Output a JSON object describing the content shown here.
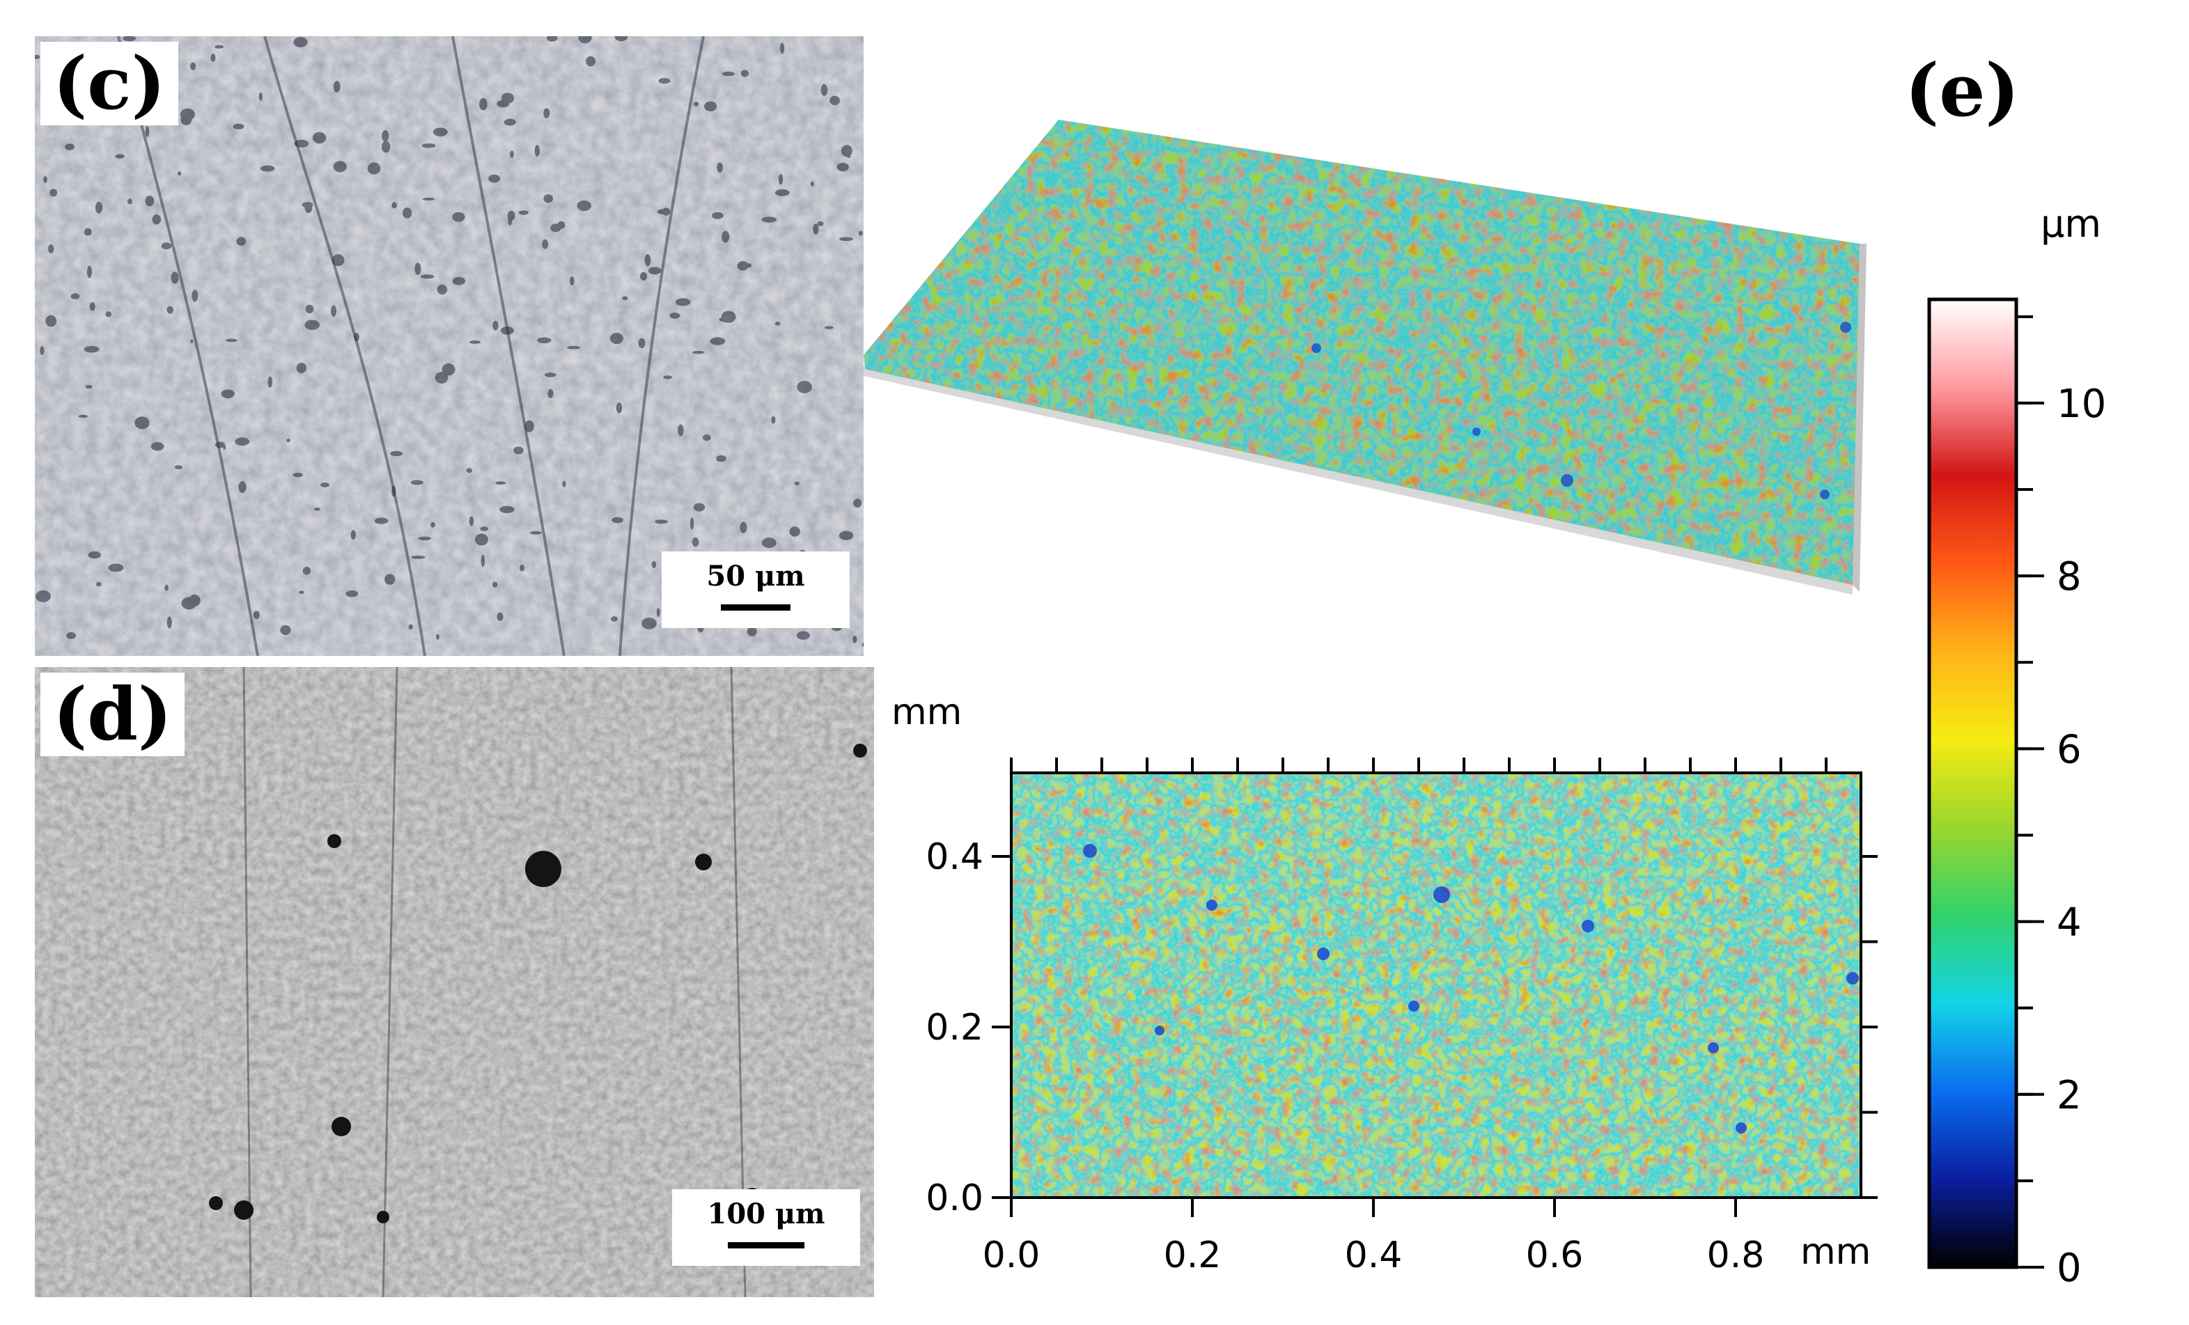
{
  "panel_c": {
    "label": "(c)",
    "scale_bar": "50 μm"
  },
  "panel_d": {
    "label": "(d)",
    "scale_bar": "100 μm"
  },
  "panel_e": {
    "label": "(e)",
    "map_2d": {
      "y_unit": "mm",
      "x_unit": "mm",
      "y_ticks": [
        "0.0",
        "0.2",
        "0.4"
      ],
      "x_ticks": [
        "0.0",
        "0.2",
        "0.4",
        "0.6",
        "0.8"
      ]
    },
    "colorbar": {
      "unit": "μm",
      "ticks": [
        "0",
        "2",
        "4",
        "6",
        "8",
        "10"
      ],
      "min": 0,
      "max": 11.2,
      "colors": [
        "#000000",
        "#0a1fa0",
        "#0a6ef0",
        "#13d4e6",
        "#32d26a",
        "#9bd62c",
        "#f4ec12",
        "#ffb318",
        "#ff5a14",
        "#d21414",
        "#ff9aa0",
        "#ffffff"
      ]
    }
  }
}
